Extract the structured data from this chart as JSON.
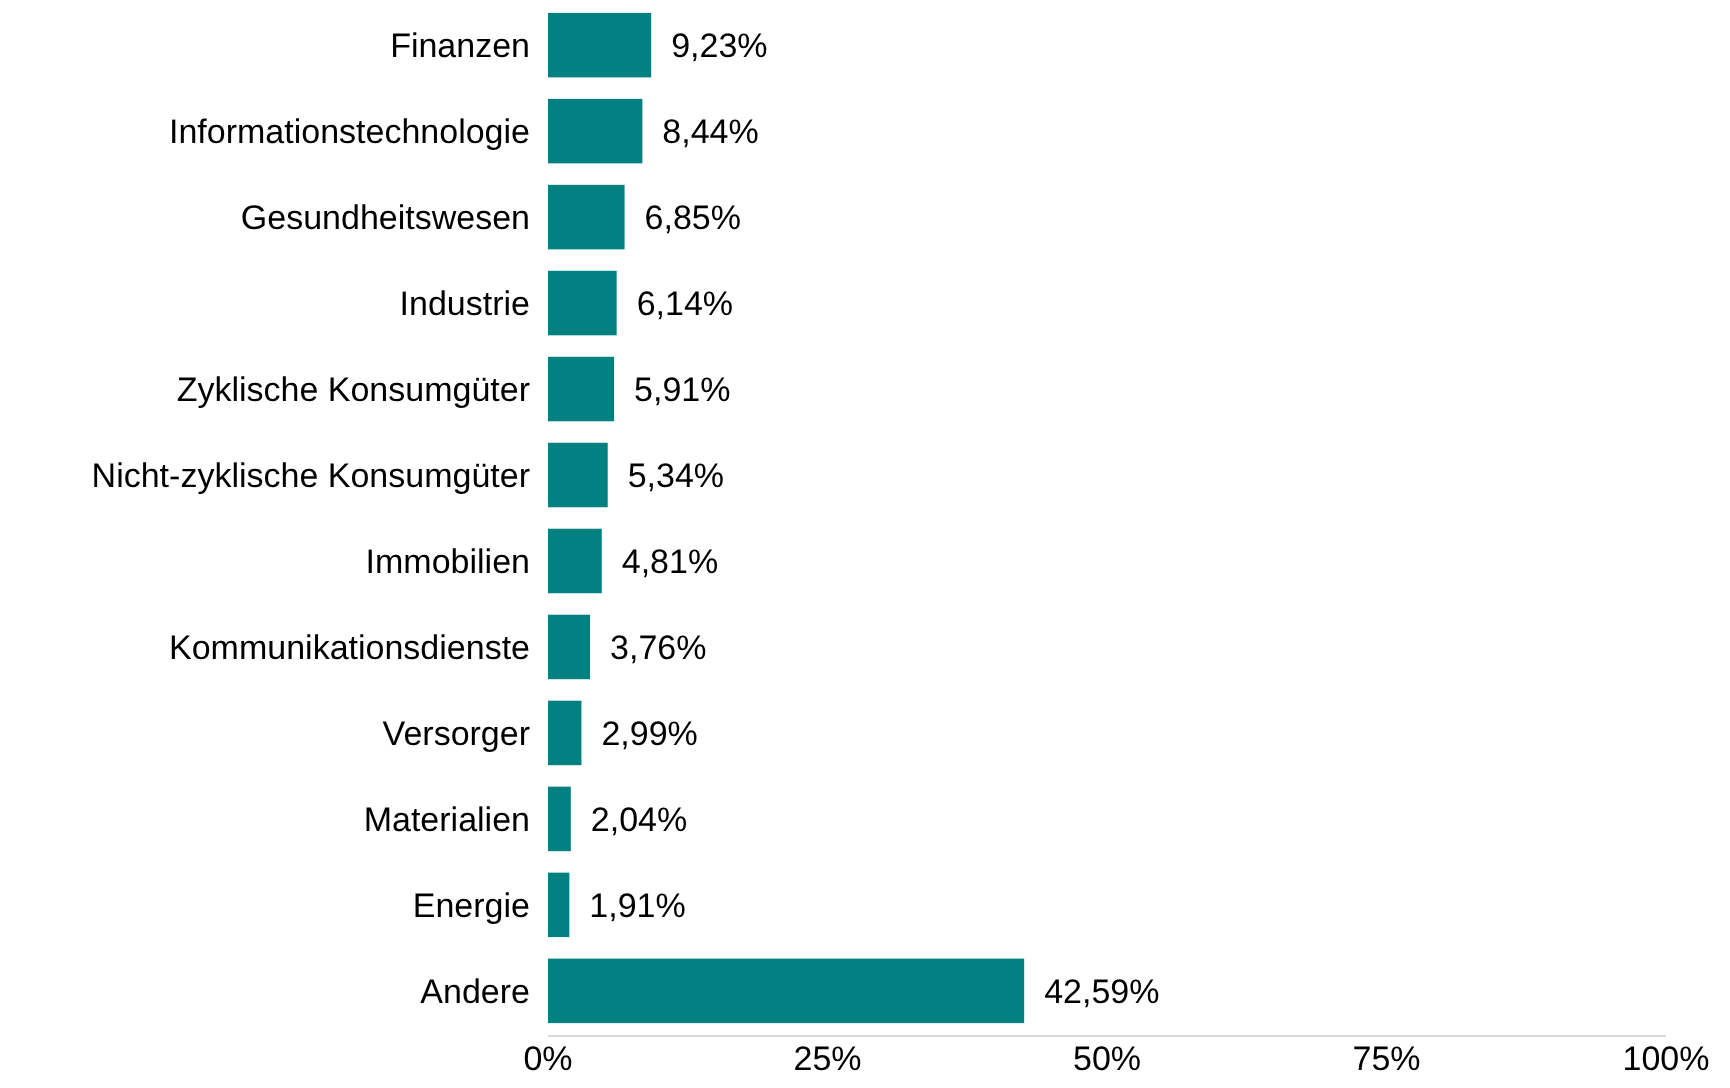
{
  "chart_data": {
    "type": "bar",
    "orientation": "horizontal",
    "categories": [
      "Finanzen",
      "Informationstechnologie",
      "Gesundheitswesen",
      "Industrie",
      "Zyklische Konsumgüter",
      "Nicht-zyklische Konsumgüter",
      "Immobilien",
      "Kommunikationsdienste",
      "Versorger",
      "Materialien",
      "Energie",
      "Andere"
    ],
    "values": [
      9.23,
      8.44,
      6.85,
      6.14,
      5.91,
      5.34,
      4.81,
      3.76,
      2.99,
      2.04,
      1.91,
      42.59
    ],
    "value_labels": [
      "9,23%",
      "8,44%",
      "6,85%",
      "6,14%",
      "5,91%",
      "5,34%",
      "4,81%",
      "3,76%",
      "2,99%",
      "2,04%",
      "1,91%",
      "42,59%"
    ],
    "color": "#008080",
    "xlim": [
      0,
      100
    ],
    "xticks": [
      {
        "value": 0,
        "label": "0%"
      },
      {
        "value": 25,
        "label": "25%"
      },
      {
        "value": 50,
        "label": "50%"
      },
      {
        "value": 75,
        "label": "75%"
      },
      {
        "value": 100,
        "label": "100%"
      }
    ],
    "grid": false
  }
}
